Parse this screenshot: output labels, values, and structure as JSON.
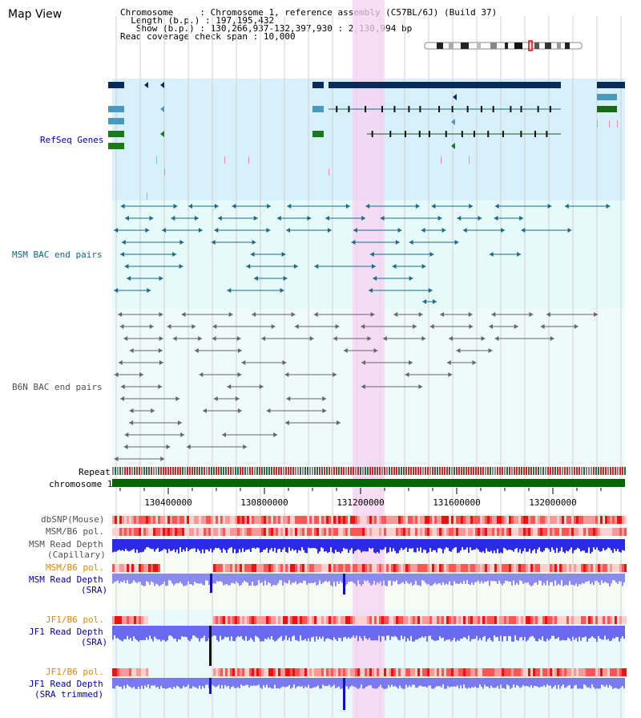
{
  "view_title": "Map View",
  "info": {
    "chromosome_key": "Chromosome",
    "chromosome_val": "Chromosome 1, reference assembly (C57BL/6J) (Build 37)",
    "length_key": "Length (b.p.)",
    "length_val": "197,195,432",
    "show_key": "Show (b.p.)",
    "show_val": "130,266,937-132,397,930 : 2,130,994 bp",
    "span_key": "Read coverage check span",
    "span_val": "10,000"
  },
  "tracks": {
    "refseq": "RefSeq Genes",
    "msm_bac": "MSM BAC end pairs",
    "b6n_bac": "B6N BAC end pairs",
    "repeat": "Repeat",
    "chromosome": "chromosome 1",
    "dbsnp": "dbSNP(Mouse)",
    "msm_pol": "MSM/B6 pol.",
    "msm_depth_cap_1": "MSM Read Depth",
    "msm_depth_cap_2": "(Capillary)",
    "msm_pol2": "MSM/B6 pol.",
    "msm_depth_sra_1": "MSM Read Depth",
    "msm_depth_sra_2": "(SRA)",
    "jf1_pol": "JF1/B6 pol.",
    "jf1_depth_1": "JF1 Read Depth",
    "jf1_depth_2": "(SRA)",
    "jf1_pol2": "JF1/B6 pol.",
    "jf1_trim_1": "JF1 Read Depth",
    "jf1_trim_2": "(SRA trimmed)"
  },
  "axis_ticks": [
    "130400000",
    "130800000",
    "131200000",
    "131600000",
    "132000000"
  ],
  "colors": {
    "refseq_bg": "#d7f0fa",
    "bac_bg": "#e6fafa",
    "b6n_bg": "#effafa",
    "highlight": "#f7d2f2",
    "chromosome": "#006600",
    "depth": "#2222ee",
    "pol": "#ee4444"
  }
}
